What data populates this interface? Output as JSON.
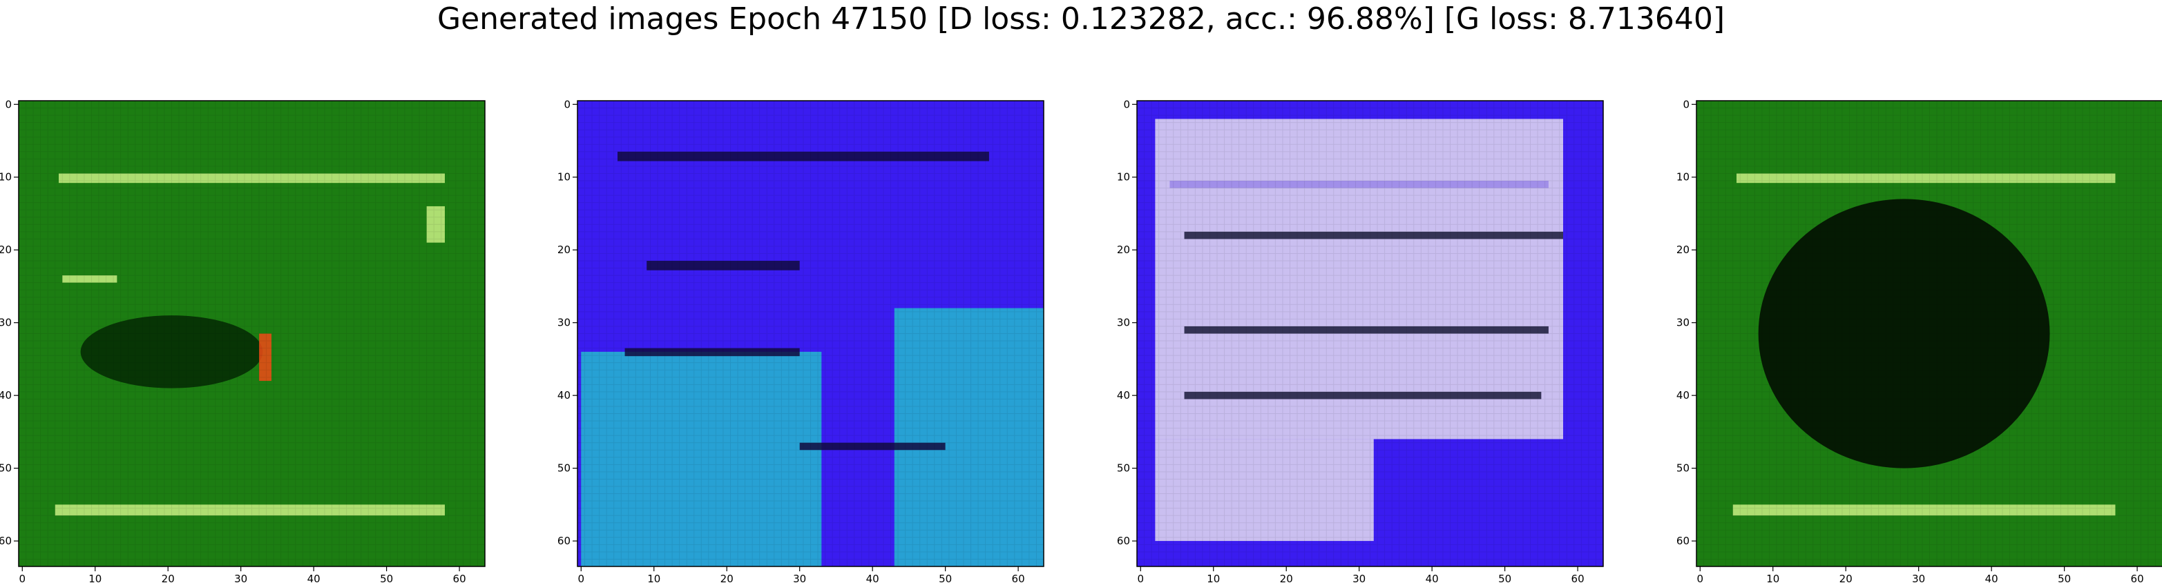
{
  "suptitle": "Generated images Epoch 47150 [D loss: 0.123282, acc.: 96.88%] [G loss: 8.713640]",
  "chart_data": [
    {
      "type": "heatmap",
      "palette": {
        "base": "#1c7d12",
        "dark": "#062e04",
        "light": "#c8ee84",
        "accent": "#ee4a16"
      },
      "xticks": [
        "0",
        "10",
        "20",
        "30",
        "40",
        "50",
        "60"
      ],
      "yticks": [
        "0",
        "10",
        "20",
        "30",
        "40",
        "50",
        "60"
      ],
      "xlim": [
        -0.5,
        63.5
      ],
      "ylim": [
        63.5,
        -0.5
      ],
      "regions": [
        {
          "shape": "rect",
          "x": [
            -0.5,
            63.5
          ],
          "y": [
            -0.5,
            63.5
          ],
          "color": "base"
        },
        {
          "shape": "rect",
          "x": [
            5,
            58
          ],
          "y": [
            9.5,
            10.8
          ],
          "color": "light"
        },
        {
          "shape": "rect",
          "x": [
            4.5,
            58
          ],
          "y": [
            55,
            56.5
          ],
          "color": "light"
        },
        {
          "shape": "rect",
          "x": [
            5.5,
            13
          ],
          "y": [
            23.5,
            24.5
          ],
          "color": "light"
        },
        {
          "shape": "rect",
          "x": [
            55.5,
            58
          ],
          "y": [
            14,
            19
          ],
          "color": "light"
        },
        {
          "shape": "ellipse",
          "x": [
            8,
            33
          ],
          "y": [
            29,
            39
          ],
          "color": "dark"
        },
        {
          "shape": "rect",
          "x": [
            32.5,
            34.2
          ],
          "y": [
            31.5,
            38
          ],
          "color": "accent"
        }
      ]
    },
    {
      "type": "heatmap",
      "palette": {
        "base": "#3a1cf0",
        "dark": "#120a40",
        "cyan": "#25b9cf",
        "light": "#8ad8e8"
      },
      "xticks": [
        "0",
        "10",
        "20",
        "30",
        "40",
        "50",
        "60"
      ],
      "yticks": [
        "0",
        "10",
        "20",
        "30",
        "40",
        "50",
        "60"
      ],
      "xlim": [
        -0.5,
        63.5
      ],
      "ylim": [
        63.5,
        -0.5
      ],
      "regions": [
        {
          "shape": "rect",
          "x": [
            -0.5,
            63.5
          ],
          "y": [
            -0.5,
            63.5
          ],
          "color": "base"
        },
        {
          "shape": "rect",
          "x": [
            5,
            56
          ],
          "y": [
            6.5,
            7.8
          ],
          "color": "dark"
        },
        {
          "shape": "rect",
          "x": [
            9,
            30
          ],
          "y": [
            21.5,
            22.8
          ],
          "color": "dark"
        },
        {
          "shape": "rect",
          "x": [
            0,
            33
          ],
          "y": [
            34,
            63.5
          ],
          "color": "cyan"
        },
        {
          "shape": "rect",
          "x": [
            43,
            63.5
          ],
          "y": [
            28,
            63.5
          ],
          "color": "cyan"
        },
        {
          "shape": "rect",
          "x": [
            6,
            30
          ],
          "y": [
            33.5,
            34.6
          ],
          "color": "dark"
        },
        {
          "shape": "rect",
          "x": [
            30,
            50
          ],
          "y": [
            46.5,
            47.5
          ],
          "color": "dark"
        }
      ]
    },
    {
      "type": "heatmap",
      "palette": {
        "base": "#3a1cf0",
        "dark": "#1a1a3a",
        "light": "#e4dcf0",
        "mid": "#9a86e8"
      },
      "xticks": [
        "0",
        "10",
        "20",
        "30",
        "40",
        "50",
        "60"
      ],
      "yticks": [
        "0",
        "10",
        "20",
        "30",
        "40",
        "50",
        "60"
      ],
      "xlim": [
        -0.5,
        63.5
      ],
      "ylim": [
        63.5,
        -0.5
      ],
      "regions": [
        {
          "shape": "rect",
          "x": [
            -0.5,
            63.5
          ],
          "y": [
            -0.5,
            63.5
          ],
          "color": "base"
        },
        {
          "shape": "rect",
          "x": [
            2,
            58
          ],
          "y": [
            2,
            46
          ],
          "color": "light"
        },
        {
          "shape": "rect",
          "x": [
            2,
            32
          ],
          "y": [
            46,
            60
          ],
          "color": "light"
        },
        {
          "shape": "rect",
          "x": [
            4,
            56
          ],
          "y": [
            10.5,
            11.5
          ],
          "color": "mid"
        },
        {
          "shape": "rect",
          "x": [
            6,
            58
          ],
          "y": [
            17.5,
            18.5
          ],
          "color": "dark"
        },
        {
          "shape": "rect",
          "x": [
            6,
            56
          ],
          "y": [
            30.5,
            31.5
          ],
          "color": "dark"
        },
        {
          "shape": "rect",
          "x": [
            6,
            55
          ],
          "y": [
            39.5,
            40.5
          ],
          "color": "dark"
        }
      ]
    },
    {
      "type": "heatmap",
      "palette": {
        "base": "#1c7d12",
        "dark": "#030f02",
        "light": "#c8ee84"
      },
      "xticks": [
        "0",
        "10",
        "20",
        "30",
        "40",
        "50",
        "60"
      ],
      "yticks": [
        "0",
        "10",
        "20",
        "30",
        "40",
        "50",
        "60"
      ],
      "xlim": [
        -0.5,
        63.5
      ],
      "ylim": [
        63.5,
        -0.5
      ],
      "regions": [
        {
          "shape": "rect",
          "x": [
            -0.5,
            63.5
          ],
          "y": [
            -0.5,
            63.5
          ],
          "color": "base"
        },
        {
          "shape": "rect",
          "x": [
            5,
            57
          ],
          "y": [
            9.5,
            10.8
          ],
          "color": "light"
        },
        {
          "shape": "rect",
          "x": [
            4.5,
            57
          ],
          "y": [
            55,
            56.5
          ],
          "color": "light"
        },
        {
          "shape": "ellipse",
          "x": [
            8,
            48
          ],
          "y": [
            13,
            50
          ],
          "color": "dark"
        }
      ]
    }
  ]
}
